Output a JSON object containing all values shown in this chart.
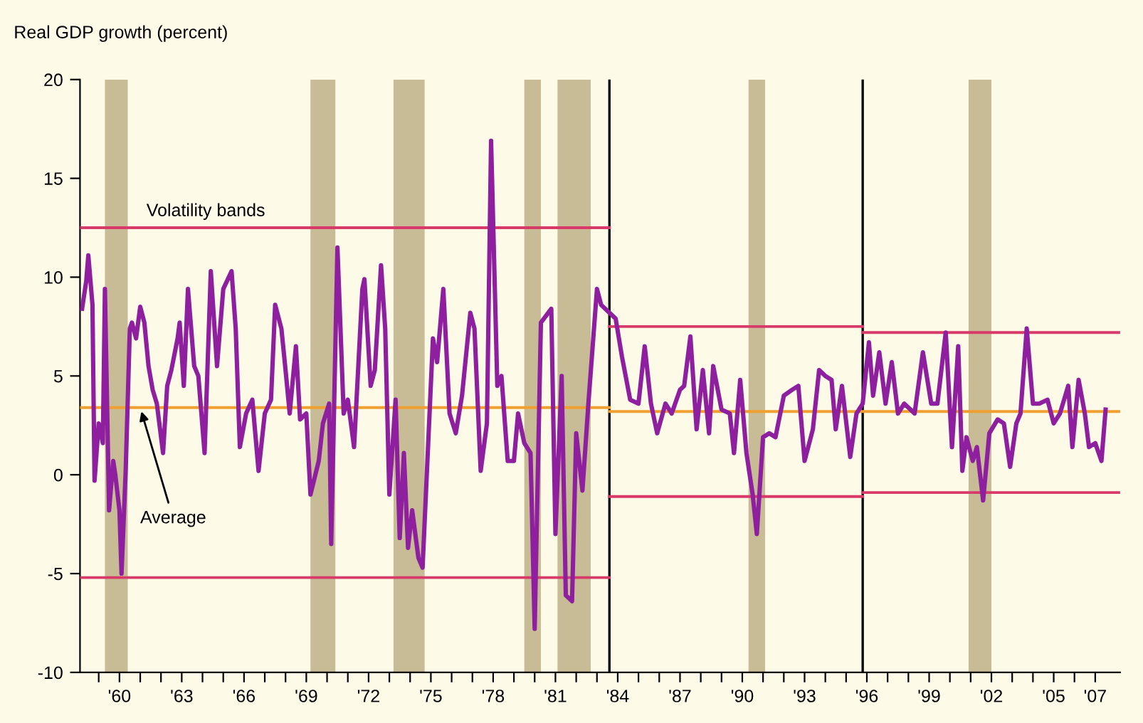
{
  "chart_data": {
    "type": "line",
    "ylabel": "Real GDP growth (percent)",
    "xlim": [
      1958.1,
      2008.2
    ],
    "ylim": [
      -10,
      20
    ],
    "yticks": [
      -10,
      -5,
      0,
      5,
      10,
      15,
      20
    ],
    "xticks": [
      {
        "value": 1959,
        "label": null
      },
      {
        "value": 1960,
        "label": "'60"
      },
      {
        "value": 1961,
        "label": null
      },
      {
        "value": 1962,
        "label": null
      },
      {
        "value": 1963,
        "label": "'63"
      },
      {
        "value": 1964,
        "label": null
      },
      {
        "value": 1965,
        "label": null
      },
      {
        "value": 1966,
        "label": "'66"
      },
      {
        "value": 1967,
        "label": null
      },
      {
        "value": 1968,
        "label": null
      },
      {
        "value": 1969,
        "label": "'69"
      },
      {
        "value": 1970,
        "label": null
      },
      {
        "value": 1971,
        "label": null
      },
      {
        "value": 1972,
        "label": "'72"
      },
      {
        "value": 1973,
        "label": null
      },
      {
        "value": 1974,
        "label": null
      },
      {
        "value": 1975,
        "label": "'75"
      },
      {
        "value": 1976,
        "label": null
      },
      {
        "value": 1977,
        "label": null
      },
      {
        "value": 1978,
        "label": "'78"
      },
      {
        "value": 1979,
        "label": null
      },
      {
        "value": 1980,
        "label": null
      },
      {
        "value": 1981,
        "label": "'81"
      },
      {
        "value": 1982,
        "label": null
      },
      {
        "value": 1983,
        "label": null
      },
      {
        "value": 1984,
        "label": "'84"
      },
      {
        "value": 1985,
        "label": null
      },
      {
        "value": 1986,
        "label": null
      },
      {
        "value": 1987,
        "label": "'87"
      },
      {
        "value": 1988,
        "label": null
      },
      {
        "value": 1989,
        "label": null
      },
      {
        "value": 1990,
        "label": "'90"
      },
      {
        "value": 1991,
        "label": null
      },
      {
        "value": 1992,
        "label": null
      },
      {
        "value": 1993,
        "label": "'93"
      },
      {
        "value": 1994,
        "label": null
      },
      {
        "value": 1995,
        "label": null
      },
      {
        "value": 1996,
        "label": "'96"
      },
      {
        "value": 1997,
        "label": null
      },
      {
        "value": 1998,
        "label": null
      },
      {
        "value": 1999,
        "label": "'99"
      },
      {
        "value": 2000,
        "label": null
      },
      {
        "value": 2001,
        "label": null
      },
      {
        "value": 2002,
        "label": "'02"
      },
      {
        "value": 2003,
        "label": null
      },
      {
        "value": 2004,
        "label": null
      },
      {
        "value": 2005,
        "label": "'05"
      },
      {
        "value": 2006,
        "label": null
      },
      {
        "value": 2007,
        "label": "'07"
      }
    ],
    "grid": false,
    "legend": false,
    "marker": "none",
    "line_style": "solid",
    "series": [
      {
        "color": "#8e1f9e",
        "x": [
          1958.2,
          1958.4,
          1958.5,
          1958.7,
          1958.8,
          1959.0,
          1959.2,
          1959.3,
          1959.5,
          1959.7,
          1959.8,
          1960.0,
          1960.1,
          1960.3,
          1960.5,
          1960.6,
          1960.8,
          1961.0,
          1961.2,
          1961.4,
          1961.6,
          1961.8,
          1962.1,
          1962.3,
          1962.5,
          1962.8,
          1962.9,
          1963.1,
          1963.3,
          1963.6,
          1963.8,
          1964.1,
          1964.4,
          1964.7,
          1965.0,
          1965.4,
          1965.6,
          1965.8,
          1966.1,
          1966.4,
          1966.7,
          1967.0,
          1967.3,
          1967.5,
          1967.8,
          1968.0,
          1968.2,
          1968.5,
          1968.7,
          1969.0,
          1969.2,
          1969.6,
          1969.8,
          1970.1,
          1970.2,
          1970.5,
          1970.8,
          1971.0,
          1971.3,
          1971.7,
          1971.8,
          1972.1,
          1972.3,
          1972.6,
          1972.8,
          1973.0,
          1973.3,
          1973.5,
          1973.7,
          1973.9,
          1974.1,
          1974.4,
          1974.6,
          1975.1,
          1975.3,
          1975.6,
          1975.9,
          1976.2,
          1976.5,
          1976.9,
          1977.1,
          1977.4,
          1977.7,
          1977.9,
          1978.2,
          1978.4,
          1978.7,
          1979.0,
          1979.2,
          1979.5,
          1979.8,
          1980.0,
          1980.3,
          1980.8,
          1981.0,
          1981.3,
          1981.5,
          1981.8,
          1982.0,
          1982.3,
          1982.6,
          1983.0,
          1983.2,
          1983.5,
          1983.9,
          1984.2,
          1984.6,
          1985.0,
          1985.3,
          1985.6,
          1985.9,
          1986.3,
          1986.6,
          1987.0,
          1987.2,
          1987.5,
          1987.8,
          1988.1,
          1988.4,
          1988.6,
          1989.0,
          1989.4,
          1989.6,
          1989.9,
          1990.2,
          1990.5,
          1990.7,
          1991.0,
          1991.3,
          1991.6,
          1992.0,
          1992.4,
          1992.7,
          1993.0,
          1993.4,
          1993.7,
          1994.0,
          1994.3,
          1994.5,
          1994.8,
          1995.2,
          1995.5,
          1995.8,
          1996.1,
          1996.3,
          1996.6,
          1996.9,
          1997.2,
          1997.5,
          1997.8,
          1998.3,
          1998.7,
          1999.1,
          1999.4,
          1999.8,
          2000.1,
          2000.4,
          2000.6,
          2000.8,
          2001.1,
          2001.3,
          2001.6,
          2001.9,
          2002.3,
          2002.6,
          2002.9,
          2003.2,
          2003.4,
          2003.7,
          2004.0,
          2004.3,
          2004.7,
          2005.0,
          2005.3,
          2005.7,
          2005.9,
          2006.2,
          2006.5,
          2006.7,
          2007.0,
          2007.3,
          2007.5
        ],
        "values": [
          8.4,
          9.8,
          11.1,
          8.6,
          -0.3,
          2.6,
          1.6,
          9.4,
          -1.8,
          0.7,
          0,
          -1.8,
          -5.0,
          0.2,
          7.4,
          7.7,
          6.9,
          8.5,
          7.7,
          5.5,
          4.3,
          3.6,
          1.1,
          4.5,
          5.3,
          6.9,
          7.7,
          4.5,
          9.4,
          5.5,
          5.0,
          1.1,
          10.3,
          5.5,
          9.4,
          10.3,
          7.4,
          1.4,
          3.1,
          3.8,
          0.2,
          3.1,
          3.8,
          8.6,
          7.4,
          5.3,
          3.1,
          6.5,
          2.8,
          3.1,
          -1.0,
          0.7,
          2.6,
          3.6,
          -3.5,
          11.5,
          3.1,
          3.8,
          1.4,
          9.4,
          9.9,
          4.5,
          5.3,
          10.6,
          7.4,
          -1.0,
          3.8,
          -3.2,
          1.1,
          -3.7,
          -1.8,
          -4.2,
          -4.7,
          6.9,
          5.7,
          9.4,
          3.1,
          2.1,
          4.0,
          8.2,
          7.4,
          0.2,
          2.6,
          16.9,
          4.5,
          5.0,
          0.7,
          0.7,
          3.1,
          1.6,
          1.1,
          -7.8,
          7.7,
          8.4,
          -3.0,
          5.0,
          -6.1,
          -6.4,
          2.1,
          -0.8,
          3.8,
          9.4,
          8.6,
          8.3,
          7.9,
          6.0,
          3.8,
          3.6,
          6.5,
          3.6,
          2.1,
          3.6,
          3.1,
          4.3,
          4.5,
          7.0,
          2.3,
          5.3,
          2.1,
          5.5,
          3.3,
          3.1,
          1.1,
          4.8,
          1.1,
          -1.0,
          -3.0,
          1.9,
          2.1,
          1.9,
          4.0,
          4.3,
          4.5,
          0.7,
          2.3,
          5.3,
          5.0,
          4.8,
          2.3,
          4.5,
          0.9,
          3.1,
          3.6,
          6.7,
          4.0,
          6.2,
          3.6,
          5.7,
          3.1,
          3.6,
          3.1,
          6.2,
          3.6,
          3.6,
          7.2,
          1.4,
          6.5,
          0.2,
          1.9,
          0.7,
          1.4,
          -1.3,
          2.1,
          2.8,
          2.6,
          0.4,
          2.6,
          3.1,
          7.4,
          3.6,
          3.6,
          3.8,
          2.6,
          3.1,
          4.5,
          1.4,
          4.8,
          3.1,
          1.4,
          1.6,
          0.7,
          3.3
        ]
      },
      {
        "color": "#d83a6a",
        "x": [
          1958.1,
          1983.6
        ],
        "values": [
          12.5,
          12.5
        ]
      },
      {
        "color": "#d83a6a",
        "x": [
          1958.1,
          1983.6
        ],
        "values": [
          -5.2,
          -5.2
        ]
      },
      {
        "color": "#d83a6a",
        "x": [
          1983.6,
          1995.8
        ],
        "values": [
          7.5,
          7.5
        ]
      },
      {
        "color": "#d83a6a",
        "x": [
          1983.6,
          1995.8
        ],
        "values": [
          -1.1,
          -1.1
        ]
      },
      {
        "color": "#d83a6a",
        "x": [
          1995.8,
          2008.2
        ],
        "values": [
          7.2,
          7.2
        ]
      },
      {
        "color": "#d83a6a",
        "x": [
          1995.8,
          2008.2
        ],
        "values": [
          -0.9,
          -0.9
        ]
      },
      {
        "color": "#f0a030",
        "x": [
          1958.1,
          1983.6
        ],
        "values": [
          3.4,
          3.4
        ]
      },
      {
        "color": "#f0a030",
        "x": [
          1983.6,
          2008.2
        ],
        "values": [
          3.2,
          3.2
        ]
      }
    ],
    "ref_lines": [
      {
        "axis": "x",
        "value": 1983.6,
        "color": "#000000"
      },
      {
        "axis": "x",
        "value": 1995.8,
        "color": "#000000"
      }
    ],
    "bands": [
      {
        "axis": "x",
        "from": 1959.3,
        "to": 1960.4,
        "color": "#c8bc96"
      },
      {
        "axis": "x",
        "from": 1969.2,
        "to": 1970.4,
        "color": "#c8bc96"
      },
      {
        "axis": "x",
        "from": 1973.2,
        "to": 1974.7,
        "color": "#c8bc96"
      },
      {
        "axis": "x",
        "from": 1979.5,
        "to": 1980.3,
        "color": "#c8bc96"
      },
      {
        "axis": "x",
        "from": 1981.1,
        "to": 1982.7,
        "color": "#c8bc96"
      },
      {
        "axis": "x",
        "from": 1990.3,
        "to": 1991.1,
        "color": "#c8bc96"
      },
      {
        "axis": "x",
        "from": 2000.9,
        "to": 2002.0,
        "color": "#c8bc96"
      }
    ],
    "annotations": [
      {
        "text": "Volatility bands",
        "x": 1961.3,
        "y": 12.5
      },
      {
        "text": "Average",
        "x": 1961.0,
        "y": 3.4
      }
    ]
  }
}
